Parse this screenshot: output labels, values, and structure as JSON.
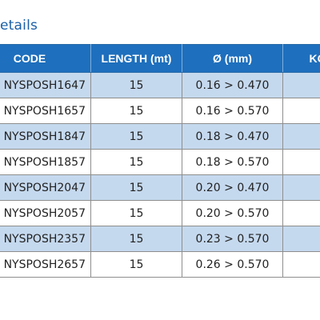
{
  "section": {
    "title": "etails"
  },
  "table": {
    "headers": [
      "CODE",
      "LENGTH (mt)",
      "Ø (mm)",
      "KG"
    ],
    "rows": [
      {
        "code": "NYSPOSH1647",
        "length": "15",
        "diameter": "0.16 > 0.470",
        "kg": ""
      },
      {
        "code": "NYSPOSH1657",
        "length": "15",
        "diameter": "0.16 > 0.570",
        "kg": ""
      },
      {
        "code": "NYSPOSH1847",
        "length": "15",
        "diameter": "0.18 > 0.470",
        "kg": ""
      },
      {
        "code": "NYSPOSH1857",
        "length": "15",
        "diameter": "0.18 > 0.570",
        "kg": ""
      },
      {
        "code": "NYSPOSH2047",
        "length": "15",
        "diameter": "0.20 > 0.470",
        "kg": ""
      },
      {
        "code": "NYSPOSH2057",
        "length": "15",
        "diameter": "0.20 > 0.570",
        "kg": ""
      },
      {
        "code": "NYSPOSH2357",
        "length": "15",
        "diameter": "0.23 > 0.570",
        "kg": ""
      },
      {
        "code": "NYSPOSH2657",
        "length": "15",
        "diameter": "0.26 > 0.570",
        "kg": ""
      }
    ]
  },
  "colors": {
    "header_bg": "#1e6fbd",
    "title_text": "#1a5fa8",
    "alt_row_bg": "#c5d9ee"
  }
}
